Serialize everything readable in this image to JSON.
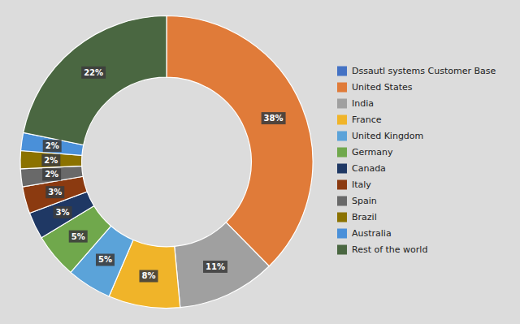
{
  "chart_data": {
    "type": "donut",
    "categories": [
      "Dssautl systems Customer Base",
      "United States",
      "India",
      "France",
      "United Kingdom",
      "Germany",
      "Canada",
      "Italy",
      "Spain",
      "Brazil",
      "Australia",
      "Rest of the world"
    ],
    "values": [
      0,
      38,
      11,
      8,
      5,
      5,
      3,
      3,
      2,
      2,
      2,
      22
    ],
    "value_labels": [
      null,
      "38%",
      "11%",
      "8%",
      "5%",
      "5%",
      "3%",
      "3%",
      "2%",
      "2%",
      "2%",
      "22%"
    ],
    "colors": [
      "#4472C4",
      "#E07B39",
      "#A0A0A0",
      "#F0B429",
      "#5BA3D9",
      "#70A84C",
      "#1F3864",
      "#8B3A10",
      "#696969",
      "#8B7200",
      "#4A90D9",
      "#4A6741"
    ],
    "data_labels": true,
    "legend": "right"
  }
}
